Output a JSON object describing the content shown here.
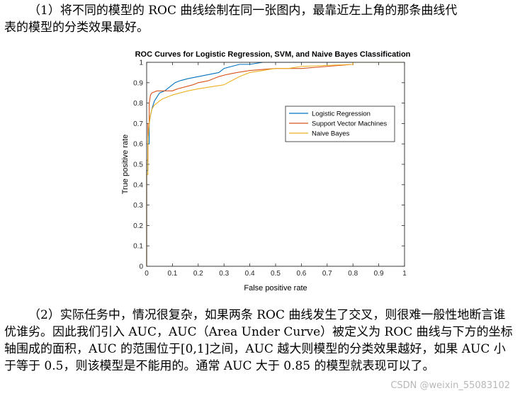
{
  "text": {
    "para1_line1": "（1）将不同的模型的 ROC 曲线绘制在同一张图内，最靠近左上角的那条曲线代",
    "para1_line2": "表的模型的分类效果最好。",
    "para2": "（2）实际任务中，情况很复杂，如果两条 ROC 曲线发生了交叉，则很难一般性地断言谁优谁劣。因此我们引入 AUC，AUC（Area Under Curve）被定义为 ROC 曲线与下方的坐标轴围成的面积，AUC 的范围位于[0,1]之间，AUC 越大则模型的分类效果越好，如果 AUC 小于等于 0.5，则该模型是不能用的。通常 AUC 大于 0.85 的模型就表现可以了。",
    "watermark": "CSDN @weixin_55083102"
  },
  "chart_data": {
    "type": "line",
    "title": "ROC Curves for Logistic Regression, SVM, and Naive Bayes Classification",
    "xlabel": "False positive rate",
    "ylabel": "True positive rate",
    "xlim": [
      0,
      1
    ],
    "ylim": [
      0,
      1
    ],
    "xticks": [
      "0",
      "0.1",
      "0.2",
      "0.3",
      "0.4",
      "0.5",
      "0.6",
      "0.7",
      "0.8",
      "0.9",
      "1"
    ],
    "yticks": [
      "0",
      "0.1",
      "0.2",
      "0.3",
      "0.4",
      "0.5",
      "0.6",
      "0.7",
      "0.8",
      "0.9",
      "1"
    ],
    "legend_position": "right",
    "series": [
      {
        "name": "Logistic Regression",
        "color": "#0072BD",
        "x": [
          0,
          0,
          0.005,
          0.005,
          0.01,
          0.01,
          0.015,
          0.02,
          0.025,
          0.03,
          0.04,
          0.05,
          0.07,
          0.09,
          0.11,
          0.13,
          0.16,
          0.2,
          0.24,
          0.28,
          0.3,
          0.33,
          0.36,
          0.4,
          0.45,
          0.5,
          0.55,
          1.0
        ],
        "y": [
          0,
          0.47,
          0.47,
          0.6,
          0.6,
          0.7,
          0.74,
          0.77,
          0.79,
          0.81,
          0.83,
          0.85,
          0.86,
          0.88,
          0.9,
          0.91,
          0.92,
          0.93,
          0.94,
          0.95,
          0.97,
          0.98,
          0.99,
          0.99,
          1.0,
          1.0,
          1.0,
          1.0
        ]
      },
      {
        "name": "Support Vector Machines",
        "color": "#D95319",
        "x": [
          0,
          0,
          0.005,
          0.005,
          0.01,
          0.01,
          0.015,
          0.02,
          0.04,
          0.06,
          0.08,
          0.1,
          0.12,
          0.15,
          0.18,
          0.2,
          0.24,
          0.28,
          0.31,
          0.35,
          0.4,
          0.5,
          0.6,
          0.7,
          0.8,
          0.8,
          1.0
        ],
        "y": [
          0,
          0.52,
          0.52,
          0.7,
          0.7,
          0.8,
          0.84,
          0.85,
          0.86,
          0.86,
          0.86,
          0.86,
          0.87,
          0.88,
          0.89,
          0.9,
          0.91,
          0.93,
          0.94,
          0.95,
          0.96,
          0.97,
          0.97,
          0.98,
          0.99,
          1.0,
          1.0
        ]
      },
      {
        "name": "Naive Bayes",
        "color": "#EDB120",
        "x": [
          0,
          0,
          0.005,
          0.005,
          0.01,
          0.015,
          0.02,
          0.03,
          0.04,
          0.06,
          0.08,
          0.1,
          0.13,
          0.16,
          0.2,
          0.25,
          0.3,
          0.33,
          0.36,
          0.4,
          0.45,
          0.5,
          0.55,
          0.6,
          0.8,
          0.8,
          1.0
        ],
        "y": [
          0,
          0.45,
          0.45,
          0.62,
          0.7,
          0.74,
          0.77,
          0.79,
          0.8,
          0.82,
          0.83,
          0.84,
          0.85,
          0.86,
          0.87,
          0.88,
          0.89,
          0.91,
          0.93,
          0.95,
          0.96,
          0.97,
          0.97,
          0.98,
          0.99,
          1.0,
          1.0
        ]
      }
    ]
  }
}
